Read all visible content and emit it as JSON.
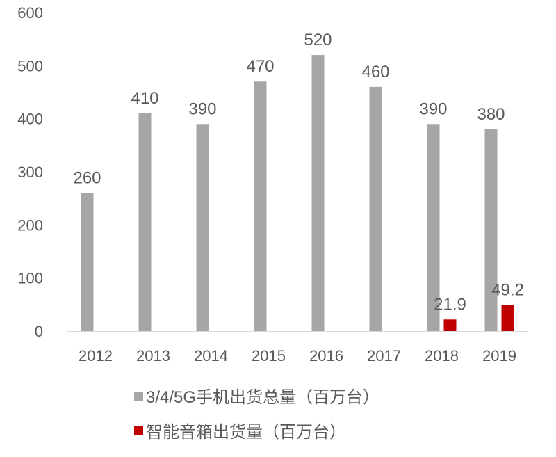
{
  "chart_data": {
    "type": "bar",
    "title": "",
    "xlabel": "",
    "ylabel": "",
    "categories": [
      "2012",
      "2013",
      "2014",
      "2015",
      "2016",
      "2017",
      "2018",
      "2019"
    ],
    "ylim": [
      0,
      600
    ],
    "yticks": [
      0,
      100,
      200,
      300,
      400,
      500,
      600
    ],
    "grid": false,
    "legend": "bottom",
    "series": [
      {
        "name": "3/4/5G手机出货总量（百万台）",
        "color": "#a6a6a6",
        "values": [
          260,
          410,
          390,
          470,
          520,
          460,
          390,
          380
        ],
        "labels": [
          "260",
          "410",
          "390",
          "470",
          "520",
          "460",
          "390",
          "380"
        ]
      },
      {
        "name": "智能音箱出货量（百万台）",
        "color": "#c00000",
        "values": [
          null,
          null,
          null,
          null,
          null,
          null,
          21.9,
          49.2
        ],
        "labels": [
          null,
          null,
          null,
          null,
          null,
          null,
          "21.9",
          "49.2"
        ]
      }
    ]
  }
}
